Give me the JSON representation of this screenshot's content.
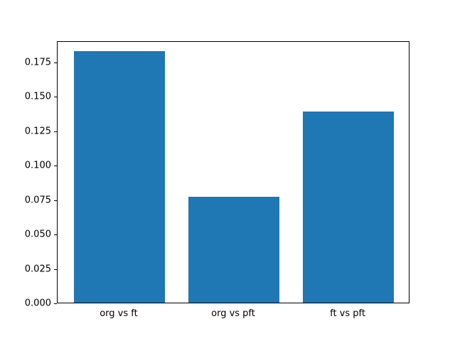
{
  "chart_data": {
    "type": "bar",
    "title": "",
    "xlabel": "",
    "ylabel": "",
    "categories": [
      "org vs ft",
      "org vs pft",
      "ft vs pft"
    ],
    "values": [
      0.183,
      0.077,
      0.139
    ],
    "ylim": [
      0,
      0.1905
    ],
    "yticks": [
      0.0,
      0.025,
      0.05,
      0.075,
      0.1,
      0.125,
      0.15,
      0.175
    ],
    "ytick_labels": [
      "0.000",
      "0.025",
      "0.050",
      "0.075",
      "0.100",
      "0.125",
      "0.150",
      "0.175"
    ],
    "bar_color": "#1f77b4",
    "grid": false,
    "legend": null,
    "layout": {
      "bar_width_fraction": 0.8,
      "x_margin": 0.54
    }
  }
}
